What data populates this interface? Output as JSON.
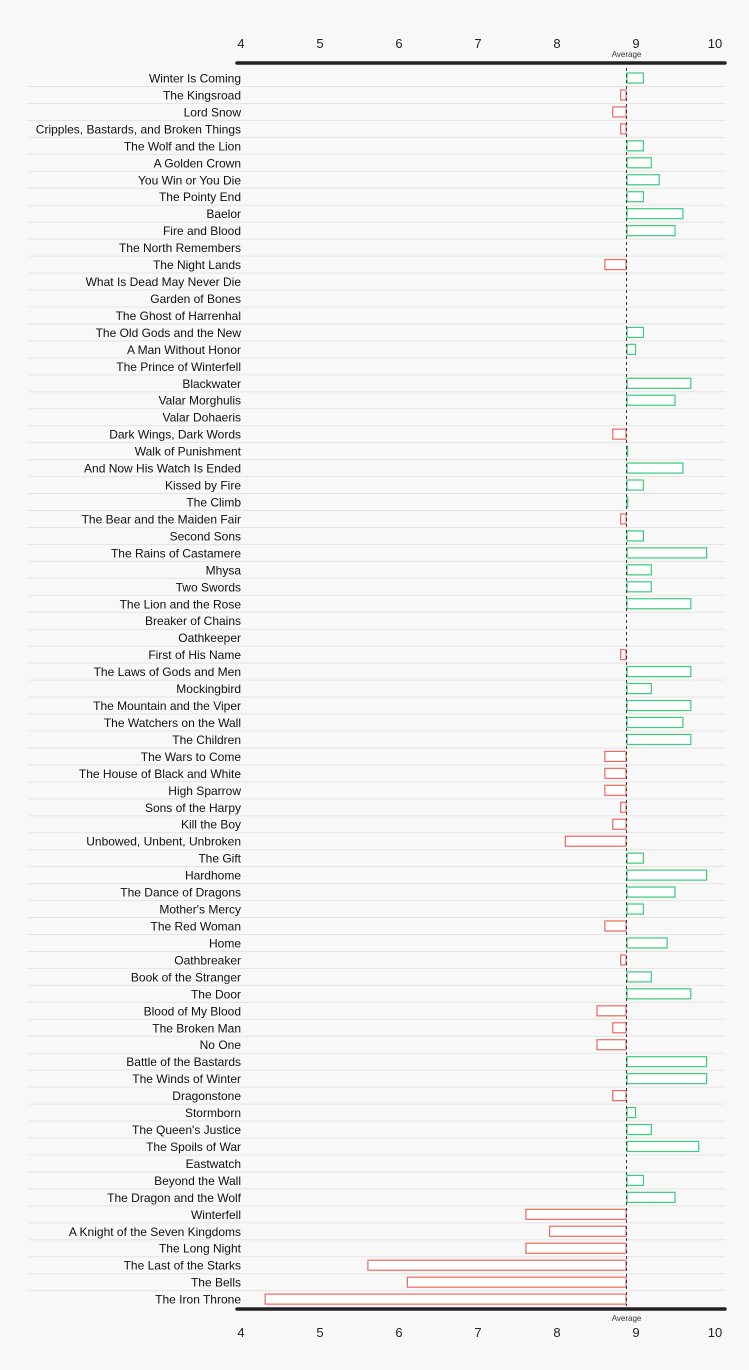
{
  "chart_data": {
    "type": "bar",
    "title": "",
    "xlabel": "",
    "ylabel": "",
    "xlim": [
      4,
      10
    ],
    "x_ticks": [
      "4",
      "5",
      "6",
      "7",
      "8",
      "9",
      "10"
    ],
    "average": 8.88,
    "average_label": "Average",
    "colors": {
      "above": "#3dcb7e",
      "below": "#ea6a5e",
      "axis": "#222222",
      "grid": "#e4e4e4"
    },
    "categories": [
      "Winter Is Coming",
      "The Kingsroad",
      "Lord Snow",
      "Cripples, Bastards, and Broken Things",
      "The Wolf and the Lion",
      "A Golden Crown",
      "You Win or You Die",
      "The Pointy End",
      "Baelor",
      "Fire and Blood",
      "The North Remembers",
      "The Night Lands",
      "What Is Dead May Never Die",
      "Garden of Bones",
      "The Ghost of Harrenhal",
      "The Old Gods and the New",
      "A Man Without Honor",
      "The Prince of Winterfell",
      "Blackwater",
      "Valar Morghulis",
      "Valar Dohaeris",
      "Dark Wings, Dark Words",
      "Walk of Punishment",
      "And Now His Watch Is Ended",
      "Kissed by Fire",
      "The Climb",
      "The Bear and the Maiden Fair",
      "Second Sons",
      "The Rains of Castamere",
      "Mhysa",
      "Two Swords",
      "The Lion and the Rose",
      "Breaker of Chains",
      "Oathkeeper",
      "First of His Name",
      "The Laws of Gods and Men",
      "Mockingbird",
      "The Mountain and the Viper",
      "The Watchers on the Wall",
      "The Children",
      "The Wars to Come",
      "The House of Black and White",
      "High Sparrow",
      "Sons of the Harpy",
      "Kill the Boy",
      "Unbowed, Unbent, Unbroken",
      "The Gift",
      "Hardhome",
      "The Dance of Dragons",
      "Mother's Mercy",
      "The Red Woman",
      "Home",
      "Oathbreaker",
      "Book of the Stranger",
      "The Door",
      "Blood of My Blood",
      "The Broken Man",
      "No One",
      "Battle of the Bastards",
      "The Winds of Winter",
      "Dragonstone",
      "Stormborn",
      "The Queen's Justice",
      "The Spoils of War",
      "Eastwatch",
      "Beyond the Wall",
      "The Dragon and the Wolf",
      "Winterfell",
      "A Knight of the Seven Kingdoms",
      "The Long Night",
      "The Last of the Starks",
      "The Bells",
      "The Iron Throne"
    ],
    "values": [
      9.1,
      8.8,
      8.7,
      8.8,
      9.1,
      9.2,
      9.3,
      9.1,
      9.6,
      9.5,
      8.88,
      8.6,
      8.88,
      8.88,
      8.88,
      9.1,
      9.0,
      8.88,
      9.7,
      9.5,
      8.88,
      8.7,
      8.9,
      9.6,
      9.1,
      8.9,
      8.8,
      9.1,
      9.9,
      9.2,
      9.2,
      9.7,
      8.88,
      8.88,
      8.8,
      9.7,
      9.2,
      9.7,
      9.6,
      9.7,
      8.6,
      8.6,
      8.6,
      8.8,
      8.7,
      8.1,
      9.1,
      9.9,
      9.5,
      9.1,
      8.6,
      9.4,
      8.8,
      9.2,
      9.7,
      8.5,
      8.7,
      8.5,
      9.9,
      9.9,
      8.7,
      9.0,
      9.2,
      9.8,
      8.88,
      9.1,
      9.5,
      7.6,
      7.9,
      7.6,
      5.6,
      6.1,
      4.3
    ]
  }
}
